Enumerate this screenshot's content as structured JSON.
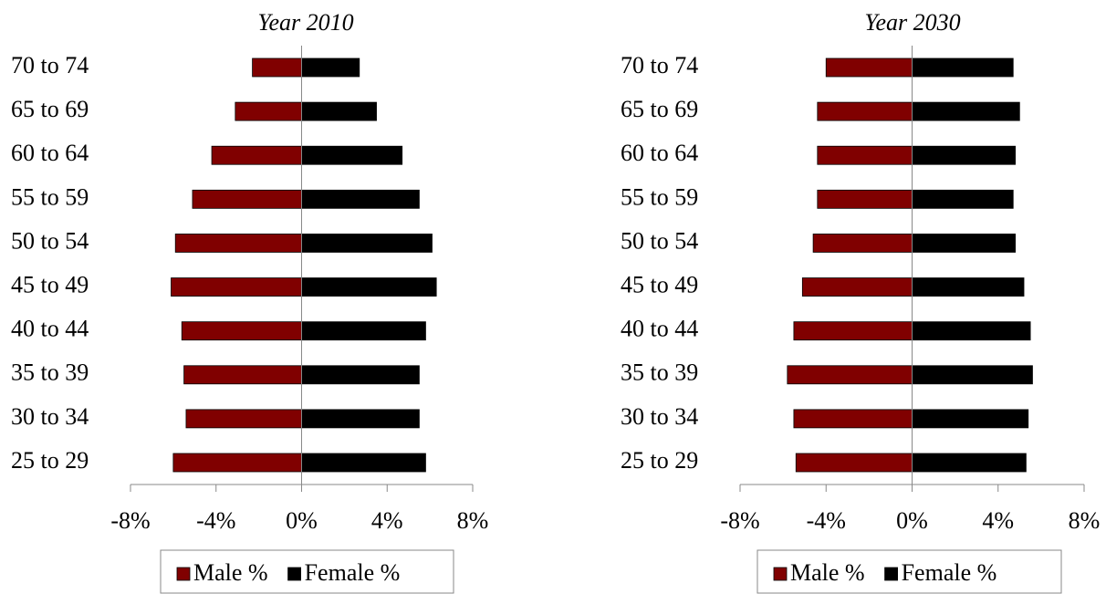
{
  "chart_data": [
    {
      "type": "bar",
      "orientation": "horizontal",
      "title": "Year 2010",
      "categories": [
        "25 to 29",
        "30 to 34",
        "35 to 39",
        "40 to 44",
        "45 to 49",
        "50 to 54",
        "55 to 59",
        "60 to 64",
        "65 to 69",
        "70 to 74"
      ],
      "series": [
        {
          "name": "Male %",
          "color": "#800000",
          "values": [
            -6.0,
            -5.4,
            -5.5,
            -5.6,
            -6.1,
            -5.9,
            -5.1,
            -4.2,
            -3.1,
            -2.3
          ]
        },
        {
          "name": "Female %",
          "color": "#000000",
          "values": [
            5.8,
            5.5,
            5.5,
            5.8,
            6.3,
            6.1,
            5.5,
            4.7,
            3.5,
            2.7
          ]
        }
      ],
      "xlim": [
        -8,
        8
      ],
      "xticks": [
        {
          "value": -8,
          "label": "-8%"
        },
        {
          "value": -4,
          "label": "-4%"
        },
        {
          "value": 0,
          "label": "0%"
        },
        {
          "value": 4,
          "label": "4%"
        },
        {
          "value": 8,
          "label": "8%"
        }
      ],
      "legend": "bottom"
    },
    {
      "type": "bar",
      "orientation": "horizontal",
      "title": "Year 2030",
      "categories": [
        "25 to 29",
        "30 to 34",
        "35 to 39",
        "40 to 44",
        "45 to 49",
        "50 to 54",
        "55 to 59",
        "60 to 64",
        "65 to 69",
        "70 to 74"
      ],
      "series": [
        {
          "name": "Male %",
          "color": "#800000",
          "values": [
            -5.4,
            -5.5,
            -5.8,
            -5.5,
            -5.1,
            -4.6,
            -4.4,
            -4.4,
            -4.4,
            -4.0
          ]
        },
        {
          "name": "Female %",
          "color": "#000000",
          "values": [
            5.3,
            5.4,
            5.6,
            5.5,
            5.2,
            4.8,
            4.7,
            4.8,
            5.0,
            4.7
          ]
        }
      ],
      "xlim": [
        -8,
        8
      ],
      "xticks": [
        {
          "value": -8,
          "label": "-8%"
        },
        {
          "value": -4,
          "label": "-4%"
        },
        {
          "value": 0,
          "label": "0%"
        },
        {
          "value": 4,
          "label": "4%"
        },
        {
          "value": 8,
          "label": "8%"
        }
      ],
      "legend": "bottom"
    }
  ]
}
